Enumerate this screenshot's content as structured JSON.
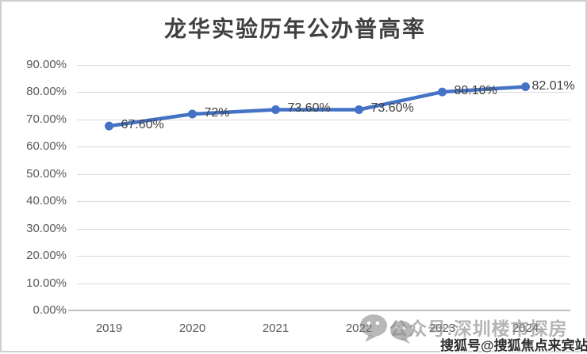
{
  "frame": {
    "background": "#ffffff",
    "border_color": "#cfcfcf"
  },
  "chart_data": {
    "type": "line",
    "title": "龙华实验历年公办普高率",
    "categories": [
      "2019",
      "2020",
      "2021",
      "2022",
      "2023",
      "2024"
    ],
    "values": [
      67.6,
      72,
      73.6,
      73.6,
      80.1,
      82.01
    ],
    "data_labels": [
      "67.60%",
      "72%",
      "73.60%",
      "73.60%",
      "80.10%",
      "82.01%"
    ],
    "y_tick_labels": [
      "90.00%",
      "80.00%",
      "70.00%",
      "60.00%",
      "50.00%",
      "40.00%",
      "30.00%",
      "20.00%",
      "10.00%",
      "0.00%"
    ],
    "ylim": [
      0,
      90
    ],
    "xlabel": "",
    "ylabel": "",
    "grid": true,
    "legend": "none",
    "colors": {
      "line": "#4472c4",
      "marker": "#4472c4",
      "data_label": "#404040",
      "axis_label": "#595959",
      "gridline": "#d9d9d9",
      "axis_line": "#bfbfbf",
      "title": "#404040"
    }
  },
  "watermarks": {
    "wechat": {
      "icon": "wechat-chat-bubbles-icon",
      "text": "公众号:深圳楼市探房",
      "color": "#878787"
    },
    "sohu": {
      "text": "搜狐号@搜狐焦点来宾站",
      "color": "#2f2f2f"
    }
  }
}
